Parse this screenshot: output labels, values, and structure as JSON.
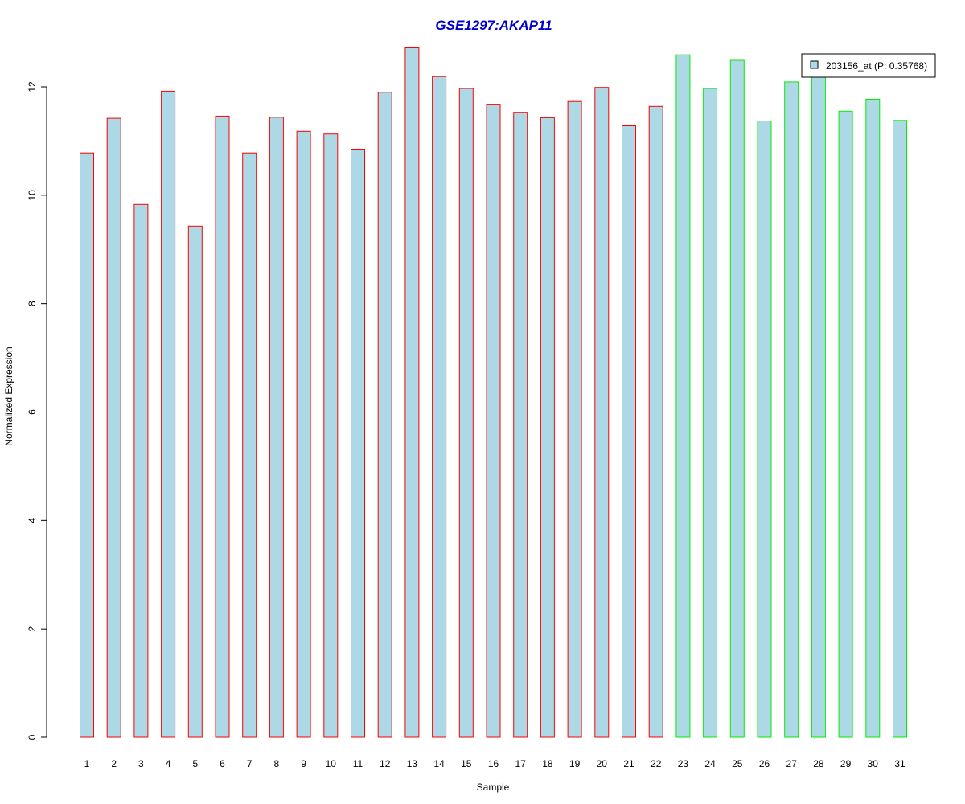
{
  "colors": {
    "title": "#0000cc",
    "bar_fill": "#add8e6",
    "group1_border": "#ff0000",
    "group2_border": "#00ee00",
    "axis": "#000000"
  },
  "chart_data": {
    "type": "bar",
    "title": "GSE1297:AKAP11",
    "xlabel": "Sample",
    "ylabel": "Normalized Expression",
    "ylim": [
      0,
      12.75
    ],
    "yticks": [
      0,
      2,
      4,
      6,
      8,
      10,
      12
    ],
    "grid": false,
    "legend_position": "top-right",
    "categories": [
      "1",
      "2",
      "3",
      "4",
      "5",
      "6",
      "7",
      "8",
      "9",
      "10",
      "11",
      "12",
      "13",
      "14",
      "15",
      "16",
      "17",
      "18",
      "19",
      "20",
      "21",
      "22",
      "23",
      "24",
      "25",
      "26",
      "27",
      "28",
      "29",
      "30",
      "31"
    ],
    "series": [
      {
        "name": "203156_at (P: 0.35768)",
        "values": [
          10.78,
          11.42,
          9.83,
          11.92,
          9.43,
          11.46,
          10.78,
          11.44,
          11.18,
          11.13,
          10.85,
          11.9,
          12.72,
          12.19,
          11.97,
          11.68,
          11.53,
          11.43,
          11.73,
          11.99,
          11.28,
          11.64,
          12.59,
          11.97,
          12.49,
          11.37,
          12.09,
          12.22,
          11.55,
          11.77,
          11.38
        ],
        "groups": [
          1,
          1,
          1,
          1,
          1,
          1,
          1,
          1,
          1,
          1,
          1,
          1,
          1,
          1,
          1,
          1,
          1,
          1,
          1,
          1,
          1,
          1,
          2,
          2,
          2,
          2,
          2,
          2,
          2,
          2,
          2
        ]
      }
    ]
  }
}
